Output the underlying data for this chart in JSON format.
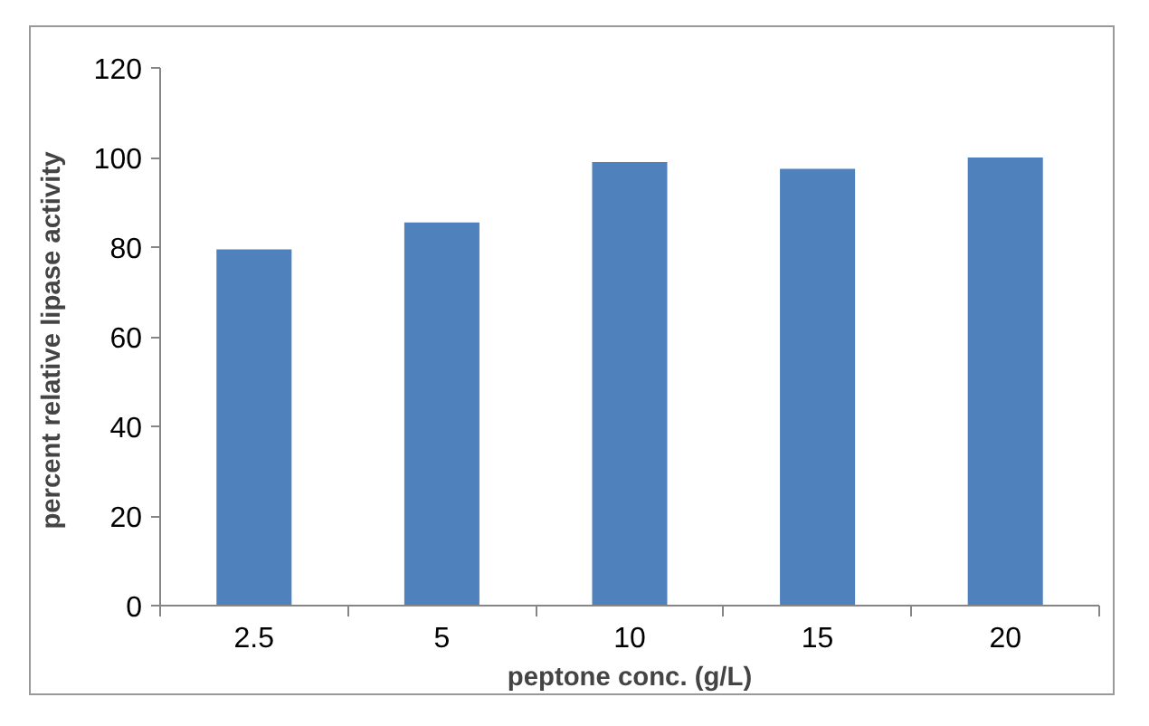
{
  "chart_data": {
    "type": "bar",
    "xlabel": "peptone conc. (g/L)",
    "ylabel": "percent relative lipase  activity",
    "categories": [
      "2.5",
      "5",
      "10",
      "15",
      "20"
    ],
    "values": [
      79.5,
      85.5,
      99,
      97.5,
      100
    ],
    "color": "#4f81bd",
    "ylim": [
      0,
      120
    ],
    "yticks": [
      0,
      20,
      40,
      60,
      80,
      100,
      120
    ],
    "grid": false
  }
}
